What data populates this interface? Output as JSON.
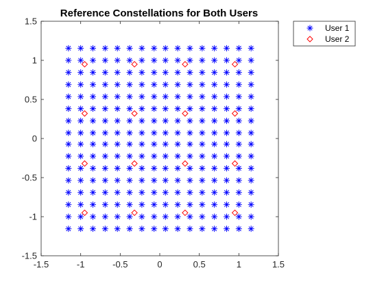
{
  "chart_data": {
    "type": "scatter",
    "title": "Reference Constellations for Both Users",
    "xlabel": "",
    "ylabel": "",
    "xlim": [
      -1.5,
      1.5
    ],
    "ylim": [
      -1.5,
      1.5
    ],
    "x_ticks": [
      -1.5,
      -1,
      -0.5,
      0,
      0.5,
      1,
      1.5
    ],
    "y_ticks": [
      -1.5,
      -1,
      -0.5,
      0,
      0.5,
      1,
      1.5
    ],
    "x_tick_labels": [
      "-1.5",
      "-1",
      "-0.5",
      "0",
      "0.5",
      "1",
      "1.5"
    ],
    "y_tick_labels": [
      "-1.5",
      "-1",
      "-0.5",
      "0",
      "0.5",
      "1",
      "1.5"
    ],
    "grid": false,
    "legend_position": "outside-top-right",
    "series": [
      {
        "name": "User 1",
        "marker": "asterisk",
        "color": "#0000ff",
        "grid_levels": [
          -1.1547,
          -1.0,
          -0.8453,
          -0.6906,
          -0.5359,
          -0.3812,
          -0.2265,
          -0.0718,
          0.0718,
          0.2265,
          0.3812,
          0.5359,
          0.6906,
          0.8453,
          1.0,
          1.1547
        ]
      },
      {
        "name": "User 2",
        "marker": "diamond",
        "color": "#ff0000",
        "points": [
          [
            -0.95,
            0.95
          ],
          [
            -0.32,
            0.95
          ],
          [
            0.32,
            0.95
          ],
          [
            0.95,
            0.95
          ],
          [
            -0.95,
            0.32
          ],
          [
            -0.32,
            0.32
          ],
          [
            0.32,
            0.32
          ],
          [
            0.95,
            0.32
          ],
          [
            -0.95,
            -0.32
          ],
          [
            -0.32,
            -0.32
          ],
          [
            0.32,
            -0.32
          ],
          [
            0.95,
            -0.32
          ],
          [
            -0.95,
            -0.95
          ],
          [
            -0.32,
            -0.95
          ],
          [
            0.32,
            -0.95
          ],
          [
            0.95,
            -0.95
          ]
        ]
      }
    ]
  }
}
